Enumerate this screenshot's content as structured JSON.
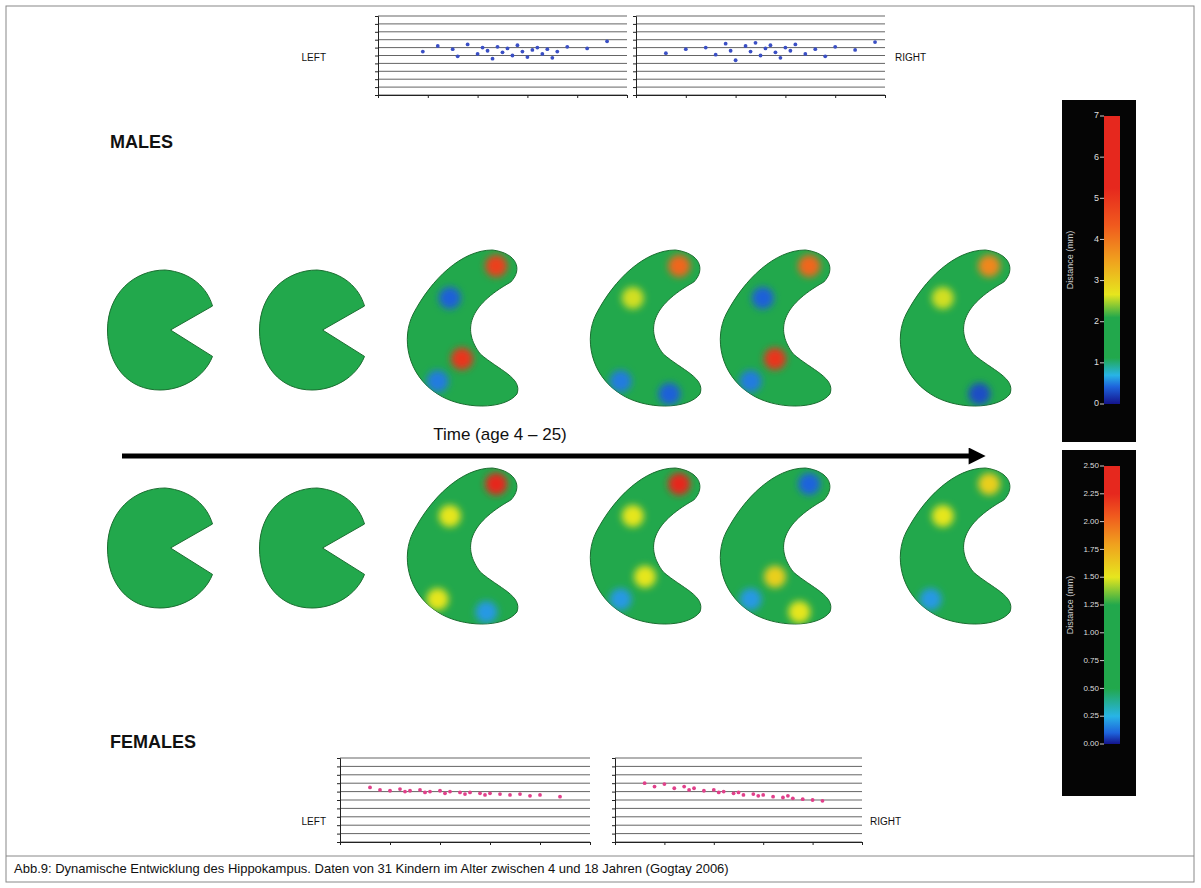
{
  "chart_data": [
    {
      "type": "scatter",
      "title": "LEFT",
      "color": "#3a4fc4",
      "marker": "circle",
      "x": [
        4.5,
        6,
        7.5,
        8,
        9,
        10,
        10.5,
        11,
        11.5,
        12,
        12.5,
        13,
        13.5,
        14,
        14.5,
        15,
        15.5,
        16,
        16.5,
        17,
        17.5,
        18,
        19,
        21,
        23
      ],
      "values": [
        5.5,
        6.2,
        5.8,
        4.9,
        6.4,
        5.2,
        6.0,
        5.6,
        4.6,
        6.1,
        5.4,
        5.9,
        5.0,
        6.3,
        5.5,
        4.8,
        5.7,
        6.0,
        5.2,
        5.8,
        4.7,
        5.5,
        6.1,
        5.9,
        6.8
      ],
      "xlim": [
        0,
        25
      ],
      "ylim": [
        0,
        10
      ],
      "xticks": [
        0,
        5,
        10,
        15,
        20,
        25
      ],
      "yticks": [
        0,
        1,
        2,
        3,
        4,
        5,
        6,
        7,
        8,
        9,
        10
      ],
      "grid": true,
      "tick_labels": false
    },
    {
      "type": "scatter",
      "title": "RIGHT",
      "color": "#3a4fc4",
      "marker": "circle",
      "x": [
        3,
        5,
        7,
        8,
        9,
        9.5,
        10,
        11,
        11.5,
        12,
        12.5,
        13,
        13.5,
        14,
        14.5,
        15,
        15.5,
        16,
        17,
        18,
        19,
        20,
        22,
        24
      ],
      "values": [
        5.3,
        5.8,
        6.0,
        5.1,
        6.5,
        5.6,
        4.4,
        6.2,
        5.5,
        6.6,
        5.0,
        5.9,
        6.3,
        5.4,
        4.7,
        6.0,
        5.6,
        6.4,
        5.2,
        5.8,
        4.9,
        6.1,
        5.7,
        6.7
      ],
      "xlim": [
        0,
        25
      ],
      "ylim": [
        0,
        10
      ],
      "xticks": [
        0,
        5,
        10,
        15,
        20,
        25
      ],
      "yticks": [
        0,
        1,
        2,
        3,
        4,
        5,
        6,
        7,
        8,
        9,
        10
      ],
      "grid": true,
      "tick_labels": false
    },
    {
      "type": "scatter",
      "title": "LEFT",
      "color": "#e0408a",
      "marker": "circle",
      "x": [
        3,
        4,
        5,
        6,
        6.5,
        7,
        8,
        8.5,
        9,
        10,
        10.5,
        11,
        12,
        12.5,
        13,
        14,
        14.5,
        15,
        16,
        17,
        18,
        19,
        20,
        22
      ],
      "values": [
        6.5,
        6.2,
        6.1,
        6.3,
        6.0,
        6.1,
        6.2,
        5.9,
        6.0,
        6.1,
        5.8,
        6.0,
        5.9,
        5.7,
        5.9,
        5.8,
        5.6,
        5.8,
        5.7,
        5.6,
        5.7,
        5.5,
        5.6,
        5.4
      ],
      "xlim": [
        0,
        25
      ],
      "ylim": [
        0,
        10
      ],
      "xticks": [
        0,
        5,
        10,
        15,
        20,
        25
      ],
      "yticks": [
        0,
        1,
        2,
        3,
        4,
        5,
        6,
        7,
        8,
        9,
        10
      ],
      "grid": true,
      "tick_labels": false
    },
    {
      "type": "scatter",
      "title": "RIGHT",
      "color": "#e0408a",
      "marker": "circle",
      "x": [
        3,
        4,
        5,
        6,
        7,
        7.5,
        8,
        9,
        10,
        10.5,
        11,
        12,
        12.5,
        13,
        14,
        14.5,
        15,
        16,
        17,
        17.5,
        18,
        19,
        20,
        21
      ],
      "values": [
        7.0,
        6.6,
        6.9,
        6.4,
        6.6,
        6.2,
        6.4,
        6.1,
        6.2,
        5.9,
        6.0,
        5.8,
        5.9,
        5.6,
        5.7,
        5.5,
        5.6,
        5.4,
        5.3,
        5.5,
        5.2,
        5.1,
        5.0,
        4.9
      ],
      "xlim": [
        0,
        25
      ],
      "ylim": [
        0,
        10
      ],
      "xticks": [
        0,
        5,
        10,
        15,
        20,
        25
      ],
      "yticks": [
        0,
        1,
        2,
        3,
        4,
        5,
        6,
        7,
        8,
        9,
        10
      ],
      "grid": true,
      "tick_labels": false
    }
  ],
  "figure": {
    "groups": [
      {
        "label": "MALES",
        "colorbar": {
          "label": "Distance (mm)",
          "range": [
            0,
            7
          ],
          "ticks": [
            0,
            1,
            2,
            3,
            4,
            5,
            6,
            7
          ]
        },
        "shapes": [
          {
            "base": 1.5,
            "spots": [
              null,
              null,
              null,
              null,
              null
            ]
          },
          {
            "base": 1.5,
            "spots": [
              null,
              null,
              null,
              null,
              null
            ]
          },
          {
            "base": 1.5,
            "spots": [
              4.8,
              0.4,
              5.0,
              0.5,
              null
            ]
          },
          {
            "base": 1.5,
            "spots": [
              4.2,
              2.6,
              null,
              0.5,
              0.4
            ]
          },
          {
            "base": 1.5,
            "spots": [
              4.2,
              0.4,
              5.0,
              0.5,
              null
            ]
          },
          {
            "base": 1.5,
            "spots": [
              3.8,
              2.6,
              null,
              null,
              0.3
            ]
          }
        ]
      },
      {
        "label": "FEMALES",
        "colorbar": {
          "label": "Distance (mm)",
          "range": [
            0,
            2.5
          ],
          "ticks": [
            {
              "value": 0,
              "label": "0.00"
            },
            {
              "value": 0.25,
              "label": "0.25"
            },
            {
              "value": 0.5,
              "label": "0.50"
            },
            {
              "value": 0.75,
              "label": "0.75"
            },
            {
              "value": 1,
              "label": "1.00"
            },
            {
              "value": 1.25,
              "label": "1.25"
            },
            {
              "value": 1.5,
              "label": "1.50"
            },
            {
              "value": 1.75,
              "label": "1.75"
            },
            {
              "value": 2,
              "label": "2.00"
            },
            {
              "value": 2.25,
              "label": "2.25"
            },
            {
              "value": 2.5,
              "label": "2.50"
            }
          ]
        },
        "shapes": [
          {
            "base": 1.0,
            "spots": [
              null,
              null,
              null,
              null,
              null
            ]
          },
          {
            "base": 1.0,
            "spots": [
              null,
              null,
              null,
              null,
              null
            ]
          },
          {
            "base": 1.0,
            "spots": [
              2.3,
              1.5,
              null,
              1.5,
              0.2
            ]
          },
          {
            "base": 1.0,
            "spots": [
              2.3,
              1.5,
              1.5,
              0.2,
              null
            ]
          },
          {
            "base": 1.0,
            "spots": [
              0.1,
              null,
              1.6,
              0.2,
              1.5
            ]
          },
          {
            "base": 1.0,
            "spots": [
              1.6,
              1.5,
              null,
              0.2,
              null
            ]
          }
        ]
      }
    ],
    "time_label": "Time (age 4 – 25)",
    "caption": "Abb.9: Dynamische Entwicklung des Hippokampus. Daten von 31 Kindern im Alter zwischen 4 und 18 Jahren (Gogtay 2006)"
  }
}
